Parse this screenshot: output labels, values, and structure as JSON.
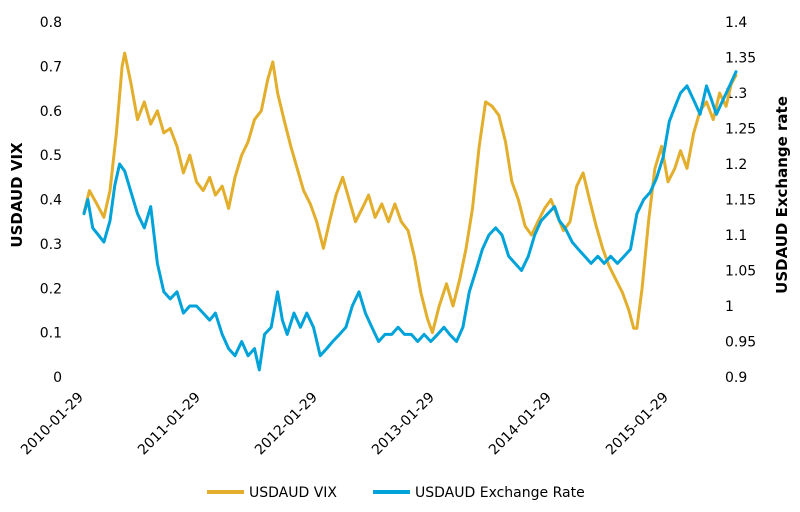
{
  "chart_data": {
    "type": "line",
    "x_tick_labels": [
      "2010-01-29",
      "2011-01-29",
      "2012-01-29",
      "2013-01-29",
      "2014-01-29",
      "2015-01-29"
    ],
    "left_axis": {
      "label": "USDAUD VIX",
      "range": [
        0,
        0.8
      ],
      "ticks": [
        "0",
        "0.1",
        "0.2",
        "0.3",
        "0.4",
        "0.5",
        "0.6",
        "0.7",
        "0.8"
      ]
    },
    "right_axis": {
      "label": "USDAUD Exchange rate",
      "range": [
        0.9,
        1.4
      ],
      "ticks": [
        "0.9",
        "0.95",
        "1",
        "1.05",
        "1.1",
        "1.15",
        "1.2",
        "1.25",
        "1.3",
        "1.35",
        "1.4"
      ]
    },
    "grid": false,
    "legend_position": "bottom",
    "series": [
      {
        "name": "USDAUD VIX",
        "axis": "left",
        "color": "#E3AE2B",
        "points": [
          [
            "2010-01-29",
            0.37
          ],
          [
            "2010-02-15",
            0.42
          ],
          [
            "2010-03-10",
            0.39
          ],
          [
            "2010-04-01",
            0.36
          ],
          [
            "2010-04-20",
            0.42
          ],
          [
            "2010-05-10",
            0.55
          ],
          [
            "2010-05-28",
            0.7
          ],
          [
            "2010-06-05",
            0.73
          ],
          [
            "2010-06-25",
            0.66
          ],
          [
            "2010-07-15",
            0.58
          ],
          [
            "2010-08-05",
            0.62
          ],
          [
            "2010-08-25",
            0.57
          ],
          [
            "2010-09-15",
            0.6
          ],
          [
            "2010-10-05",
            0.55
          ],
          [
            "2010-10-25",
            0.56
          ],
          [
            "2010-11-15",
            0.52
          ],
          [
            "2010-12-05",
            0.46
          ],
          [
            "2010-12-25",
            0.5
          ],
          [
            "2011-01-15",
            0.44
          ],
          [
            "2011-02-05",
            0.42
          ],
          [
            "2011-02-25",
            0.45
          ],
          [
            "2011-03-15",
            0.41
          ],
          [
            "2011-04-05",
            0.43
          ],
          [
            "2011-04-25",
            0.38
          ],
          [
            "2011-05-15",
            0.45
          ],
          [
            "2011-06-05",
            0.5
          ],
          [
            "2011-06-25",
            0.53
          ],
          [
            "2011-07-15",
            0.58
          ],
          [
            "2011-08-05",
            0.6
          ],
          [
            "2011-08-25",
            0.67
          ],
          [
            "2011-09-10",
            0.71
          ],
          [
            "2011-09-25",
            0.64
          ],
          [
            "2011-10-15",
            0.58
          ],
          [
            "2011-11-05",
            0.52
          ],
          [
            "2011-11-25",
            0.47
          ],
          [
            "2011-12-15",
            0.42
          ],
          [
            "2012-01-05",
            0.39
          ],
          [
            "2012-01-25",
            0.35
          ],
          [
            "2012-02-15",
            0.29
          ],
          [
            "2012-03-05",
            0.35
          ],
          [
            "2012-03-25",
            0.41
          ],
          [
            "2012-04-15",
            0.45
          ],
          [
            "2012-05-05",
            0.4
          ],
          [
            "2012-05-25",
            0.35
          ],
          [
            "2012-06-15",
            0.38
          ],
          [
            "2012-07-05",
            0.41
          ],
          [
            "2012-07-25",
            0.36
          ],
          [
            "2012-08-15",
            0.39
          ],
          [
            "2012-09-05",
            0.35
          ],
          [
            "2012-09-25",
            0.39
          ],
          [
            "2012-10-15",
            0.35
          ],
          [
            "2012-11-05",
            0.33
          ],
          [
            "2012-11-25",
            0.27
          ],
          [
            "2012-12-15",
            0.19
          ],
          [
            "2013-01-05",
            0.13
          ],
          [
            "2013-01-20",
            0.1
          ],
          [
            "2013-02-10",
            0.16
          ],
          [
            "2013-03-05",
            0.21
          ],
          [
            "2013-03-25",
            0.16
          ],
          [
            "2013-04-15",
            0.22
          ],
          [
            "2013-05-05",
            0.29
          ],
          [
            "2013-05-25",
            0.38
          ],
          [
            "2013-06-15",
            0.52
          ],
          [
            "2013-07-05",
            0.62
          ],
          [
            "2013-07-25",
            0.61
          ],
          [
            "2013-08-15",
            0.59
          ],
          [
            "2013-09-05",
            0.53
          ],
          [
            "2013-09-25",
            0.44
          ],
          [
            "2013-10-15",
            0.4
          ],
          [
            "2013-11-05",
            0.34
          ],
          [
            "2013-11-25",
            0.32
          ],
          [
            "2013-12-15",
            0.35
          ],
          [
            "2014-01-05",
            0.38
          ],
          [
            "2014-01-25",
            0.4
          ],
          [
            "2014-02-15",
            0.36
          ],
          [
            "2014-03-05",
            0.33
          ],
          [
            "2014-03-25",
            0.35
          ],
          [
            "2014-04-15",
            0.43
          ],
          [
            "2014-05-05",
            0.46
          ],
          [
            "2014-05-25",
            0.4
          ],
          [
            "2014-06-15",
            0.34
          ],
          [
            "2014-07-05",
            0.29
          ],
          [
            "2014-07-25",
            0.25
          ],
          [
            "2014-08-15",
            0.22
          ],
          [
            "2014-09-05",
            0.19
          ],
          [
            "2014-09-25",
            0.15
          ],
          [
            "2014-10-10",
            0.11
          ],
          [
            "2014-10-20",
            0.11
          ],
          [
            "2014-11-05",
            0.2
          ],
          [
            "2014-11-25",
            0.35
          ],
          [
            "2014-12-15",
            0.47
          ],
          [
            "2015-01-05",
            0.52
          ],
          [
            "2015-01-25",
            0.44
          ],
          [
            "2015-02-15",
            0.47
          ],
          [
            "2015-03-05",
            0.51
          ],
          [
            "2015-03-25",
            0.47
          ],
          [
            "2015-04-15",
            0.55
          ],
          [
            "2015-05-05",
            0.6
          ],
          [
            "2015-05-25",
            0.62
          ],
          [
            "2015-06-15",
            0.58
          ],
          [
            "2015-07-05",
            0.64
          ],
          [
            "2015-07-25",
            0.61
          ],
          [
            "2015-08-10",
            0.66
          ],
          [
            "2015-08-25",
            0.68
          ]
        ]
      },
      {
        "name": "USDAUD Exchange Rate",
        "axis": "right",
        "color": "#00A3D9",
        "points": [
          [
            "2010-01-29",
            1.13
          ],
          [
            "2010-02-10",
            1.15
          ],
          [
            "2010-02-25",
            1.11
          ],
          [
            "2010-03-15",
            1.1
          ],
          [
            "2010-04-01",
            1.09
          ],
          [
            "2010-04-20",
            1.12
          ],
          [
            "2010-05-05",
            1.17
          ],
          [
            "2010-05-20",
            1.2
          ],
          [
            "2010-06-05",
            1.19
          ],
          [
            "2010-06-25",
            1.16
          ],
          [
            "2010-07-15",
            1.13
          ],
          [
            "2010-08-05",
            1.11
          ],
          [
            "2010-08-25",
            1.14
          ],
          [
            "2010-09-15",
            1.06
          ],
          [
            "2010-10-05",
            1.02
          ],
          [
            "2010-10-25",
            1.01
          ],
          [
            "2010-11-15",
            1.02
          ],
          [
            "2010-12-05",
            0.99
          ],
          [
            "2010-12-25",
            1.0
          ],
          [
            "2011-01-15",
            1.0
          ],
          [
            "2011-02-05",
            0.99
          ],
          [
            "2011-02-25",
            0.98
          ],
          [
            "2011-03-15",
            0.99
          ],
          [
            "2011-04-05",
            0.96
          ],
          [
            "2011-04-25",
            0.94
          ],
          [
            "2011-05-15",
            0.93
          ],
          [
            "2011-06-05",
            0.95
          ],
          [
            "2011-06-25",
            0.93
          ],
          [
            "2011-07-15",
            0.94
          ],
          [
            "2011-07-30",
            0.91
          ],
          [
            "2011-08-15",
            0.96
          ],
          [
            "2011-09-05",
            0.97
          ],
          [
            "2011-09-25",
            1.02
          ],
          [
            "2011-10-10",
            0.98
          ],
          [
            "2011-10-25",
            0.96
          ],
          [
            "2011-11-15",
            0.99
          ],
          [
            "2011-12-05",
            0.97
          ],
          [
            "2011-12-25",
            0.99
          ],
          [
            "2012-01-15",
            0.97
          ],
          [
            "2012-02-05",
            0.93
          ],
          [
            "2012-02-25",
            0.94
          ],
          [
            "2012-03-15",
            0.95
          ],
          [
            "2012-04-05",
            0.96
          ],
          [
            "2012-04-25",
            0.97
          ],
          [
            "2012-05-15",
            1.0
          ],
          [
            "2012-06-05",
            1.02
          ],
          [
            "2012-06-25",
            0.99
          ],
          [
            "2012-07-15",
            0.97
          ],
          [
            "2012-08-05",
            0.95
          ],
          [
            "2012-08-25",
            0.96
          ],
          [
            "2012-09-15",
            0.96
          ],
          [
            "2012-10-05",
            0.97
          ],
          [
            "2012-10-25",
            0.96
          ],
          [
            "2012-11-15",
            0.96
          ],
          [
            "2012-12-05",
            0.95
          ],
          [
            "2012-12-25",
            0.96
          ],
          [
            "2013-01-15",
            0.95
          ],
          [
            "2013-02-05",
            0.96
          ],
          [
            "2013-02-25",
            0.97
          ],
          [
            "2013-03-15",
            0.96
          ],
          [
            "2013-04-05",
            0.95
          ],
          [
            "2013-04-25",
            0.97
          ],
          [
            "2013-05-15",
            1.02
          ],
          [
            "2013-06-05",
            1.05
          ],
          [
            "2013-06-25",
            1.08
          ],
          [
            "2013-07-15",
            1.1
          ],
          [
            "2013-08-05",
            1.11
          ],
          [
            "2013-08-25",
            1.1
          ],
          [
            "2013-09-15",
            1.07
          ],
          [
            "2013-10-05",
            1.06
          ],
          [
            "2013-10-25",
            1.05
          ],
          [
            "2013-11-15",
            1.07
          ],
          [
            "2013-12-05",
            1.1
          ],
          [
            "2013-12-25",
            1.12
          ],
          [
            "2014-01-15",
            1.13
          ],
          [
            "2014-02-05",
            1.14
          ],
          [
            "2014-02-20",
            1.12
          ],
          [
            "2014-03-10",
            1.11
          ],
          [
            "2014-04-01",
            1.09
          ],
          [
            "2014-04-20",
            1.08
          ],
          [
            "2014-05-10",
            1.07
          ],
          [
            "2014-05-30",
            1.06
          ],
          [
            "2014-06-20",
            1.07
          ],
          [
            "2014-07-10",
            1.06
          ],
          [
            "2014-07-30",
            1.07
          ],
          [
            "2014-08-20",
            1.06
          ],
          [
            "2014-09-10",
            1.07
          ],
          [
            "2014-09-30",
            1.08
          ],
          [
            "2014-10-20",
            1.13
          ],
          [
            "2014-11-10",
            1.15
          ],
          [
            "2014-11-30",
            1.16
          ],
          [
            "2014-12-20",
            1.18
          ],
          [
            "2015-01-10",
            1.21
          ],
          [
            "2015-01-29",
            1.26
          ],
          [
            "2015-02-15",
            1.28
          ],
          [
            "2015-03-05",
            1.3
          ],
          [
            "2015-03-25",
            1.31
          ],
          [
            "2015-04-15",
            1.29
          ],
          [
            "2015-05-05",
            1.27
          ],
          [
            "2015-05-25",
            1.31
          ],
          [
            "2015-06-10",
            1.29
          ],
          [
            "2015-06-25",
            1.27
          ],
          [
            "2015-07-15",
            1.29
          ],
          [
            "2015-08-05",
            1.31
          ],
          [
            "2015-08-25",
            1.33
          ]
        ]
      }
    ]
  },
  "legend": [
    {
      "label": "USDAUD VIX",
      "color": "#E3AE2B"
    },
    {
      "label": "USDAUD Exchange Rate",
      "color": "#00A3D9"
    }
  ]
}
